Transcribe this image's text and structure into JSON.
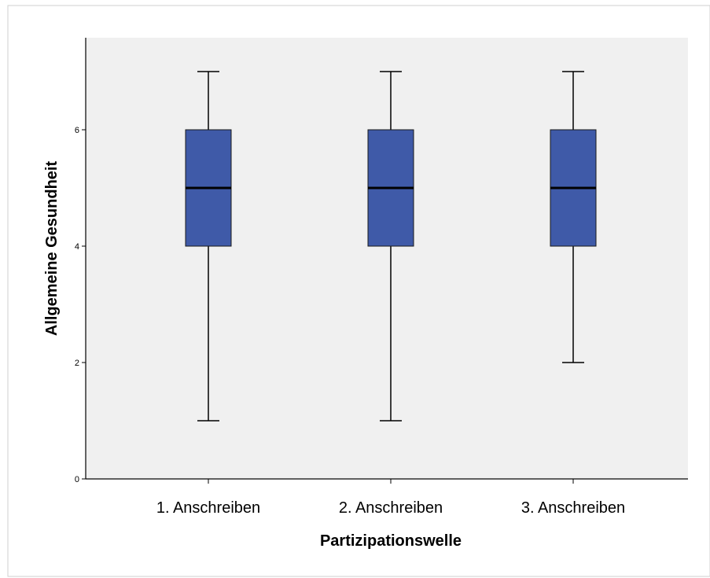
{
  "chart_data": {
    "type": "boxplot",
    "title": "",
    "xlabel": "Partizipationswelle",
    "ylabel": "Allgemeine Gesundheit",
    "ylim": [
      0,
      7.5
    ],
    "yticks": [
      0,
      2,
      4,
      6
    ],
    "ytick_labels": [
      "0",
      "2",
      "4",
      "6"
    ],
    "categories": [
      "1. Anschreiben",
      "2. Anschreiben",
      "3. Anschreiben"
    ],
    "boxes": [
      {
        "category": "1. Anschreiben",
        "min": 1,
        "q1": 4,
        "median": 5,
        "q3": 6,
        "max": 7
      },
      {
        "category": "2. Anschreiben",
        "min": 1,
        "q1": 4,
        "median": 5,
        "q3": 6,
        "max": 7
      },
      {
        "category": "3. Anschreiben",
        "min": 2,
        "q1": 4,
        "median": 5,
        "q3": 6,
        "max": 7
      }
    ],
    "grid": false,
    "colors": {
      "box_fill": "#3f5aa8",
      "plot_background": "#f0f0f0",
      "line": "#000000"
    }
  }
}
